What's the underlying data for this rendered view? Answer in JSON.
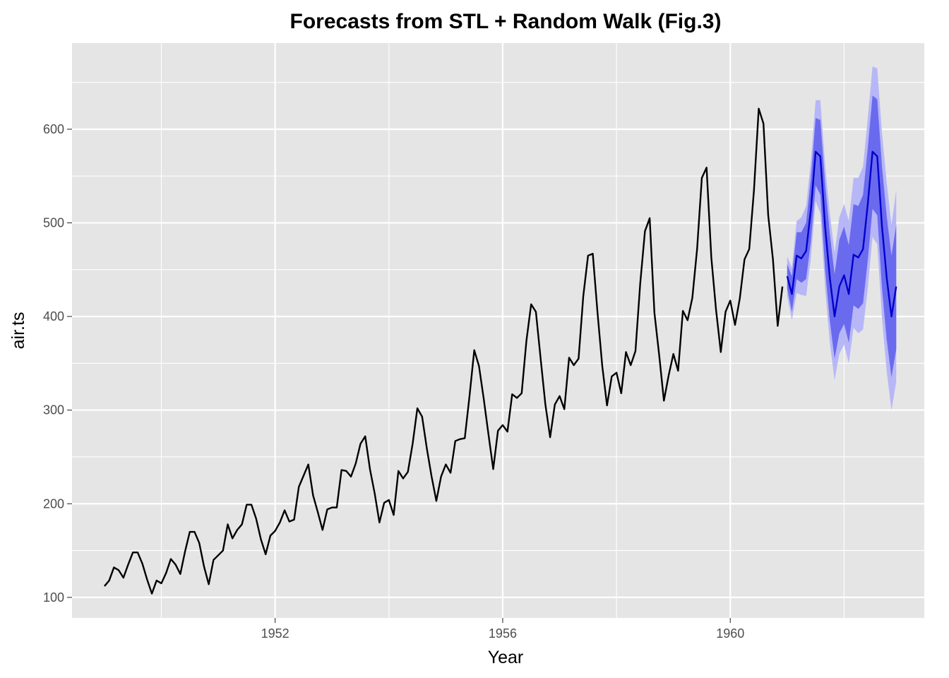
{
  "chart_data": {
    "type": "line",
    "title": "Forecasts from STL + Random Walk (Fig.3)",
    "xlabel": "Year",
    "ylabel": "air.ts",
    "x_ticks": [
      1952,
      1956,
      1960
    ],
    "y_ticks": [
      100,
      200,
      300,
      400,
      500,
      600
    ],
    "xlim": [
      1948.43,
      1963.41
    ],
    "ylim": [
      78,
      692
    ],
    "grid": true,
    "legend": "none",
    "colors": {
      "panel": "#e5e5e5",
      "grid": "#ffffff",
      "history": "#000000",
      "forecast": "#0000cc",
      "band80": "#6a6aef",
      "band95": "#b7b7f7"
    },
    "series": [
      {
        "start": 1949.0,
        "frequency": 12,
        "values": [
          112,
          118,
          132,
          129,
          121,
          135,
          148,
          148,
          136,
          119,
          104,
          118,
          115,
          126,
          141,
          135,
          125,
          149,
          170,
          170,
          158,
          133,
          114,
          140,
          145,
          150,
          178,
          163,
          172,
          178,
          199,
          199,
          184,
          162,
          146,
          166,
          171,
          180,
          193,
          181,
          183,
          218,
          230,
          242,
          209,
          191,
          172,
          194,
          196,
          196,
          236,
          235,
          229,
          243,
          264,
          272,
          237,
          211,
          180,
          201,
          204,
          188,
          235,
          227,
          234,
          264,
          302,
          293,
          259,
          229,
          203,
          229,
          242,
          233,
          267,
          269,
          270,
          315,
          364,
          347,
          312,
          274,
          237,
          278,
          284,
          277,
          317,
          313,
          318,
          374,
          413,
          405,
          355,
          306,
          271,
          306,
          315,
          301,
          356,
          348,
          355,
          422,
          465,
          467,
          404,
          347,
          305,
          336,
          340,
          318,
          362,
          348,
          363,
          435,
          491,
          505,
          404,
          359,
          310,
          337,
          360,
          342,
          406,
          396,
          420,
          472,
          548,
          559,
          463,
          407,
          362,
          405,
          417,
          391,
          419,
          461,
          472,
          535,
          622,
          606,
          508,
          461,
          390,
          432
        ]
      },
      {
        "start": 1961.0,
        "frequency": 12,
        "forecast": [
          443,
          424,
          465,
          462,
          470,
          514,
          576,
          571,
          496,
          441,
          400,
          432,
          444,
          424,
          466,
          463,
          472,
          520,
          576,
          571,
          496,
          441,
          400,
          432
        ],
        "lo80": [
          430,
          405,
          440,
          436,
          440,
          480,
          540,
          530,
          450,
          395,
          355,
          382,
          392,
          372,
          412,
          408,
          414,
          460,
          515,
          508,
          430,
          375,
          335,
          365
        ],
        "hi80": [
          456,
          443,
          490,
          490,
          500,
          548,
          612,
          610,
          542,
          488,
          445,
          482,
          496,
          476,
          520,
          518,
          530,
          580,
          636,
          632,
          560,
          507,
          465,
          498
        ],
        "lo95": [
          422,
          396,
          425,
          423,
          422,
          462,
          523,
          510,
          430,
          372,
          332,
          360,
          370,
          350,
          388,
          382,
          386,
          430,
          485,
          477,
          398,
          341,
          300,
          330
        ],
        "hi95": [
          464,
          452,
          502,
          506,
          518,
          566,
          631,
          631,
          562,
          510,
          468,
          506,
          520,
          502,
          548,
          548,
          560,
          612,
          667,
          665,
          596,
          543,
          498,
          535
        ]
      }
    ]
  }
}
